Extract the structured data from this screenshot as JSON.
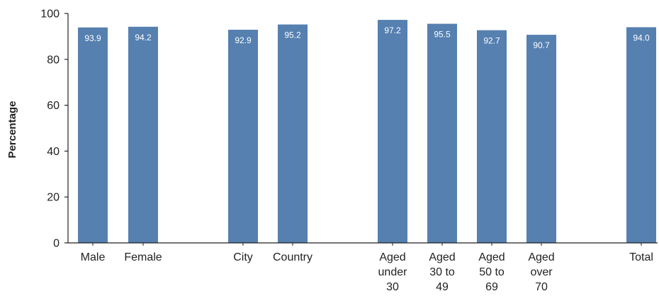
{
  "chart_data": {
    "type": "bar",
    "ylabel": "Percentage",
    "ylim": [
      0,
      100
    ],
    "yticks": [
      "0",
      "20",
      "40",
      "60",
      "80",
      "100"
    ],
    "bar_color": "#5580b0",
    "categories": [
      [
        "Male"
      ],
      [
        "Female"
      ],
      [
        "City"
      ],
      [
        "Country"
      ],
      [
        "Aged",
        "under",
        "30"
      ],
      [
        "Aged",
        "30 to",
        "49"
      ],
      [
        "Aged",
        "50 to",
        "69"
      ],
      [
        "Aged",
        "over",
        "70"
      ],
      [
        "Total"
      ]
    ],
    "values": [
      93.9,
      94.2,
      92.9,
      95.2,
      97.2,
      95.5,
      92.7,
      90.7,
      94.0
    ],
    "data_labels": [
      "93.9",
      "94.2",
      "92.9",
      "95.2",
      "97.2",
      "95.5",
      "92.7",
      "90.7",
      "94.0"
    ],
    "grid": false,
    "legend": "none"
  }
}
